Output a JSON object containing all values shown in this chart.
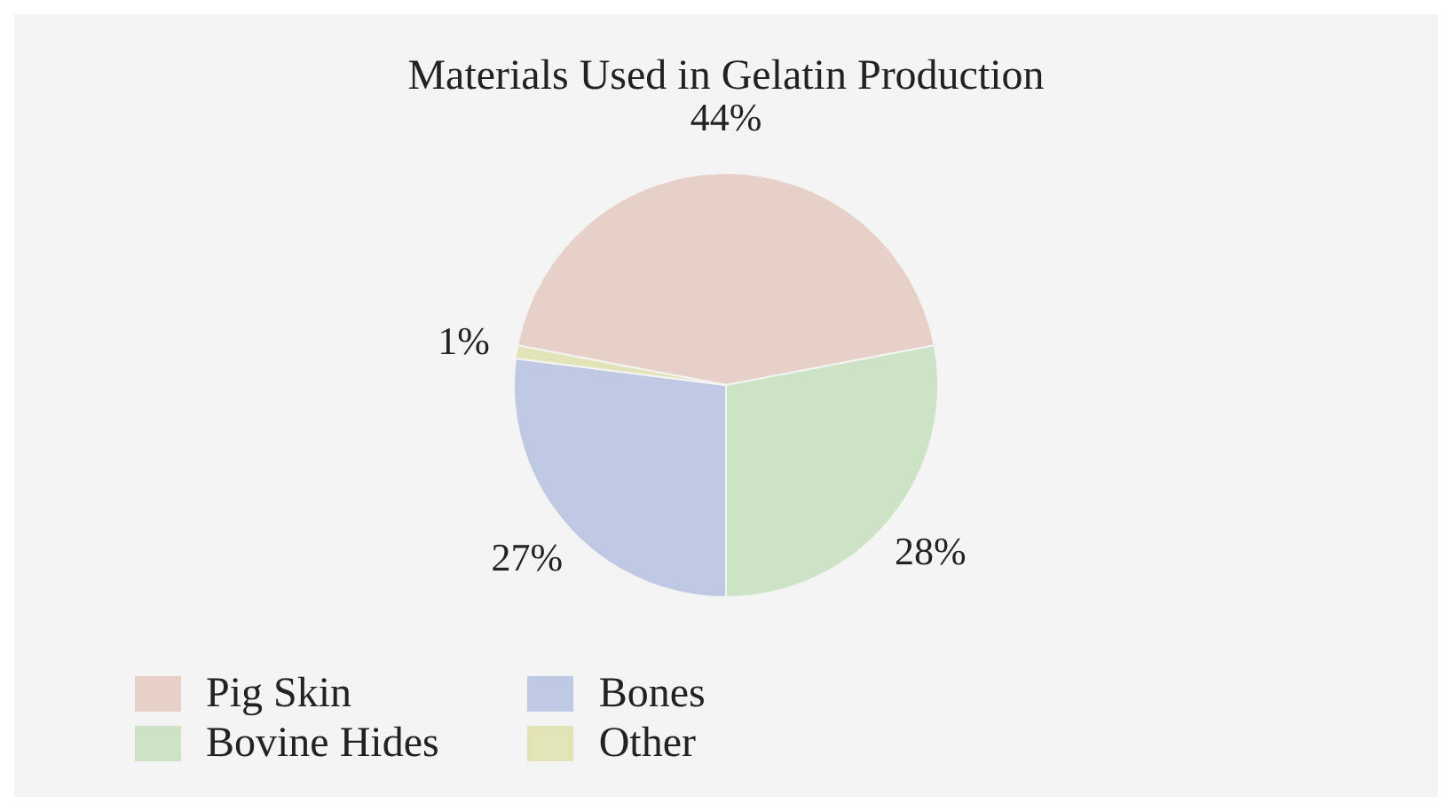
{
  "chart_data": {
    "type": "pie",
    "title": "Materials Used in Gelatin Production",
    "categories": [
      "Pig Skin",
      "Bovine Hides",
      "Bones",
      "Other"
    ],
    "values": [
      44,
      28,
      27,
      1
    ],
    "value_labels": [
      "44%",
      "28%",
      "27%",
      "1%"
    ],
    "colors": [
      "#e6d0c8",
      "#cde3c6",
      "#bfc9e3",
      "#e3e3b8"
    ],
    "legend": "bottom left"
  }
}
